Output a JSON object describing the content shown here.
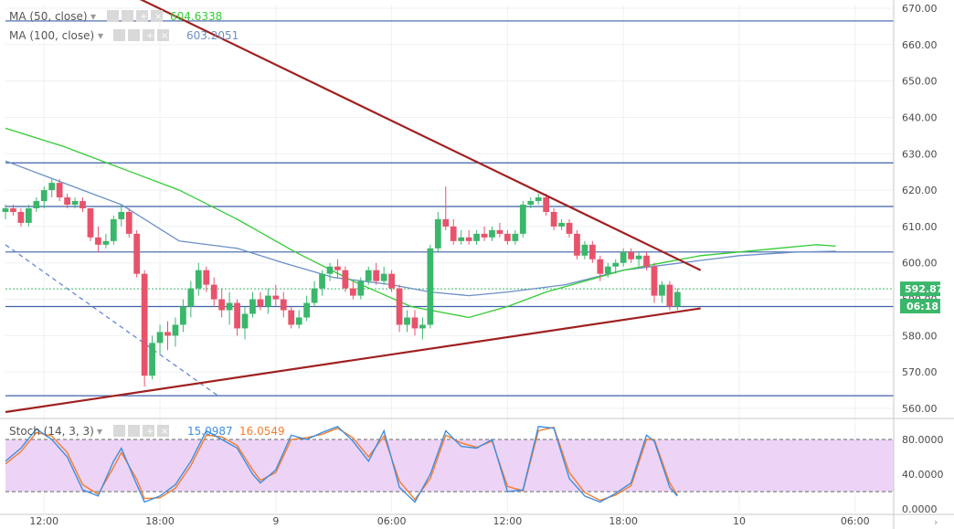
{
  "chart_data": {
    "type": "candlestick",
    "main_pane": {
      "y_ticks": [
        "670.00",
        "660.00",
        "650.00",
        "640.00",
        "630.00",
        "620.00",
        "610.00",
        "600.00",
        "590.00",
        "580.00",
        "570.00",
        "560.00"
      ],
      "ylim": [
        558,
        671
      ],
      "price_label": "592.87",
      "countdown_label": "06:18",
      "indicators": [
        {
          "label": "MA (50, close)",
          "value": "604.6338",
          "color": "#33cc33"
        },
        {
          "label": "MA (100, close)",
          "value": "603.2051",
          "color": "#6a8fc7"
        }
      ],
      "horizontal_levels": [
        666.5,
        627.5,
        615.5,
        603.0,
        588.0,
        563.5
      ],
      "ma50": [
        [
          0,
          637
        ],
        [
          15,
          632
        ],
        [
          30,
          626
        ],
        [
          45,
          620
        ],
        [
          60,
          612
        ],
        [
          75,
          603
        ],
        [
          90,
          595
        ],
        [
          105,
          588
        ],
        [
          120,
          585
        ],
        [
          130,
          588
        ],
        [
          140,
          592
        ],
        [
          150,
          595
        ],
        [
          160,
          598
        ],
        [
          170,
          600
        ],
        [
          180,
          602
        ],
        [
          190,
          603
        ],
        [
          200,
          604
        ],
        [
          210,
          605
        ],
        [
          215,
          604.6
        ]
      ],
      "ma100": [
        [
          0,
          628
        ],
        [
          15,
          622
        ],
        [
          30,
          616
        ],
        [
          45,
          606
        ],
        [
          60,
          604
        ],
        [
          72,
          600
        ],
        [
          85,
          596
        ],
        [
          100,
          594
        ],
        [
          110,
          592
        ],
        [
          120,
          591
        ],
        [
          130,
          592
        ],
        [
          145,
          594
        ],
        [
          160,
          598
        ],
        [
          175,
          600
        ],
        [
          190,
          602
        ],
        [
          205,
          603
        ],
        [
          215,
          603.2
        ]
      ],
      "candles": [
        [
          0,
          614,
          616,
          612,
          615
        ],
        [
          2,
          615,
          616,
          613,
          614
        ],
        [
          4,
          614,
          615,
          610,
          611
        ],
        [
          6,
          611,
          616,
          610,
          615
        ],
        [
          8,
          615,
          618,
          614,
          617
        ],
        [
          10,
          617,
          621,
          615,
          620
        ],
        [
          12,
          620,
          623,
          618,
          622
        ],
        [
          14,
          622,
          623,
          617,
          618
        ],
        [
          16,
          618,
          619,
          615,
          616
        ],
        [
          18,
          616,
          618,
          615,
          617
        ],
        [
          20,
          617,
          618,
          614,
          615
        ],
        [
          22,
          615,
          615,
          606,
          607
        ],
        [
          24,
          607,
          610,
          603,
          605
        ],
        [
          26,
          605,
          608,
          604,
          606
        ],
        [
          28,
          606,
          613,
          605,
          612
        ],
        [
          30,
          612,
          616,
          610,
          614
        ],
        [
          32,
          614,
          615,
          607,
          608
        ],
        [
          34,
          608,
          609,
          596,
          597
        ],
        [
          36,
          597,
          598,
          566,
          569
        ],
        [
          38,
          569,
          580,
          568,
          578
        ],
        [
          40,
          578,
          583,
          575,
          581
        ],
        [
          42,
          581,
          584,
          576,
          580
        ],
        [
          44,
          580,
          585,
          577,
          583
        ],
        [
          46,
          583,
          590,
          581,
          588
        ],
        [
          48,
          588,
          595,
          585,
          593
        ],
        [
          50,
          593,
          600,
          591,
          598
        ],
        [
          52,
          598,
          599,
          592,
          594
        ],
        [
          54,
          594,
          596,
          588,
          590
        ],
        [
          56,
          590,
          593,
          585,
          587
        ],
        [
          58,
          587,
          592,
          583,
          589
        ],
        [
          60,
          589,
          590,
          580,
          582
        ],
        [
          62,
          582,
          588,
          579,
          586
        ],
        [
          64,
          586,
          592,
          585,
          590
        ],
        [
          66,
          590,
          592,
          587,
          588
        ],
        [
          68,
          588,
          593,
          586,
          591
        ],
        [
          70,
          591,
          594,
          588,
          590
        ],
        [
          72,
          590,
          592,
          585,
          587
        ],
        [
          74,
          587,
          588,
          582,
          583
        ],
        [
          76,
          583,
          587,
          582,
          585
        ],
        [
          78,
          585,
          591,
          584,
          589
        ],
        [
          80,
          589,
          595,
          588,
          593
        ],
        [
          82,
          593,
          598,
          591,
          597
        ],
        [
          84,
          597,
          600,
          595,
          599
        ],
        [
          86,
          599,
          601,
          596,
          598
        ],
        [
          88,
          598,
          599,
          592,
          593
        ],
        [
          90,
          593,
          595,
          590,
          591
        ],
        [
          92,
          591,
          596,
          590,
          595
        ],
        [
          94,
          595,
          599,
          594,
          598
        ],
        [
          96,
          598,
          600,
          594,
          595
        ],
        [
          98,
          595,
          599,
          594,
          597
        ],
        [
          100,
          597,
          598,
          592,
          593
        ],
        [
          102,
          593,
          594,
          581,
          583
        ],
        [
          104,
          583,
          587,
          581,
          585
        ],
        [
          106,
          585,
          587,
          580,
          582
        ],
        [
          108,
          582,
          585,
          579,
          583
        ],
        [
          110,
          583,
          605,
          582,
          604
        ],
        [
          112,
          604,
          614,
          603,
          612
        ],
        [
          114,
          612,
          621,
          609,
          610
        ],
        [
          116,
          610,
          612,
          605,
          606
        ],
        [
          118,
          606,
          609,
          605,
          607
        ],
        [
          120,
          607,
          609,
          605,
          606
        ],
        [
          122,
          606,
          609,
          605,
          608
        ],
        [
          124,
          608,
          610,
          606,
          607
        ],
        [
          126,
          607,
          610,
          606,
          609
        ],
        [
          128,
          609,
          611,
          607,
          608
        ],
        [
          130,
          608,
          609,
          605,
          606
        ],
        [
          132,
          606,
          609,
          605,
          608
        ],
        [
          134,
          608,
          617,
          607,
          616
        ],
        [
          136,
          616,
          618,
          615,
          617
        ],
        [
          138,
          617,
          619,
          616,
          618
        ],
        [
          140,
          618,
          619,
          613,
          614
        ],
        [
          142,
          614,
          615,
          609,
          610
        ],
        [
          144,
          610,
          612,
          609,
          611
        ],
        [
          146,
          611,
          612,
          607,
          608
        ],
        [
          148,
          608,
          609,
          601,
          602
        ],
        [
          150,
          602,
          606,
          601,
          605
        ],
        [
          152,
          605,
          606,
          600,
          601
        ],
        [
          154,
          601,
          602,
          595,
          597
        ],
        [
          156,
          597,
          600,
          596,
          599
        ],
        [
          158,
          599,
          601,
          597,
          600
        ],
        [
          160,
          600,
          604,
          599,
          603
        ],
        [
          162,
          603,
          604,
          600,
          601
        ],
        [
          164,
          601,
          603,
          599,
          602
        ],
        [
          166,
          602,
          603,
          598,
          599
        ],
        [
          168,
          599,
          600,
          589,
          591
        ],
        [
          170,
          591,
          595,
          589,
          594
        ],
        [
          172,
          594,
          595,
          587,
          588
        ],
        [
          174,
          588,
          593,
          587,
          592
        ]
      ],
      "trendlines": [
        [
          [
            30,
            675
          ],
          [
            180,
            598
          ]
        ],
        [
          [
            0,
            559
          ],
          [
            180,
            587.5
          ]
        ]
      ]
    },
    "stoch_pane": {
      "label": "Stoch (14, 3, 3)",
      "values": [
        {
          "text": "15.0987",
          "color": "#3d8fe0"
        },
        {
          "text": "16.0549",
          "color": "#f57c2b"
        }
      ],
      "y_ticks": [
        "80.0000",
        "40.0000",
        "0.0000"
      ],
      "ylim": [
        -3,
        100
      ],
      "band": [
        20,
        80
      ],
      "k": [
        [
          0,
          55
        ],
        [
          4,
          70
        ],
        [
          8,
          92
        ],
        [
          12,
          80
        ],
        [
          16,
          60
        ],
        [
          20,
          22
        ],
        [
          24,
          15
        ],
        [
          28,
          55
        ],
        [
          30,
          70
        ],
        [
          34,
          28
        ],
        [
          36,
          8
        ],
        [
          40,
          15
        ],
        [
          44,
          28
        ],
        [
          48,
          55
        ],
        [
          52,
          90
        ],
        [
          56,
          80
        ],
        [
          60,
          70
        ],
        [
          64,
          40
        ],
        [
          66,
          30
        ],
        [
          70,
          45
        ],
        [
          74,
          85
        ],
        [
          78,
          80
        ],
        [
          82,
          88
        ],
        [
          86,
          95
        ],
        [
          90,
          78
        ],
        [
          94,
          55
        ],
        [
          98,
          90
        ],
        [
          102,
          25
        ],
        [
          106,
          8
        ],
        [
          110,
          40
        ],
        [
          114,
          90
        ],
        [
          118,
          72
        ],
        [
          122,
          70
        ],
        [
          126,
          80
        ],
        [
          130,
          20
        ],
        [
          134,
          22
        ],
        [
          138,
          95
        ],
        [
          142,
          93
        ],
        [
          146,
          35
        ],
        [
          150,
          15
        ],
        [
          154,
          8
        ],
        [
          158,
          18
        ],
        [
          162,
          30
        ],
        [
          166,
          85
        ],
        [
          168,
          78
        ],
        [
          172,
          25
        ],
        [
          174,
          15
        ]
      ],
      "d": [
        [
          0,
          52
        ],
        [
          4,
          66
        ],
        [
          8,
          88
        ],
        [
          12,
          84
        ],
        [
          16,
          65
        ],
        [
          20,
          28
        ],
        [
          24,
          17
        ],
        [
          28,
          48
        ],
        [
          30,
          65
        ],
        [
          34,
          34
        ],
        [
          36,
          12
        ],
        [
          40,
          13
        ],
        [
          44,
          24
        ],
        [
          48,
          50
        ],
        [
          52,
          85
        ],
        [
          56,
          83
        ],
        [
          60,
          73
        ],
        [
          64,
          45
        ],
        [
          66,
          33
        ],
        [
          70,
          42
        ],
        [
          74,
          80
        ],
        [
          78,
          82
        ],
        [
          82,
          86
        ],
        [
          86,
          93
        ],
        [
          90,
          82
        ],
        [
          94,
          60
        ],
        [
          98,
          84
        ],
        [
          102,
          32
        ],
        [
          106,
          11
        ],
        [
          110,
          35
        ],
        [
          114,
          85
        ],
        [
          118,
          76
        ],
        [
          122,
          71
        ],
        [
          126,
          78
        ],
        [
          130,
          26
        ],
        [
          134,
          21
        ],
        [
          138,
          90
        ],
        [
          142,
          94
        ],
        [
          146,
          42
        ],
        [
          150,
          19
        ],
        [
          154,
          10
        ],
        [
          158,
          16
        ],
        [
          162,
          27
        ],
        [
          166,
          80
        ],
        [
          168,
          80
        ],
        [
          172,
          30
        ],
        [
          174,
          16
        ]
      ]
    },
    "x_ticks": [
      {
        "label": "12:00",
        "i": 10
      },
      {
        "label": "18:00",
        "i": 40
      },
      {
        "label": "9",
        "i": 70
      },
      {
        "label": "06:00",
        "i": 100
      },
      {
        "label": "12:00",
        "i": 130
      },
      {
        "label": "18:00",
        "i": 160
      },
      {
        "label": "10",
        "i": 190
      },
      {
        "label": "06:00",
        "i": 220
      }
    ],
    "xlim": [
      0,
      230
    ],
    "colors": {
      "up": "#3ab76a",
      "down": "#e8536b",
      "trend": "#a02020",
      "level": "#3f62a8",
      "band_fill": "#e8c9f5"
    }
  }
}
